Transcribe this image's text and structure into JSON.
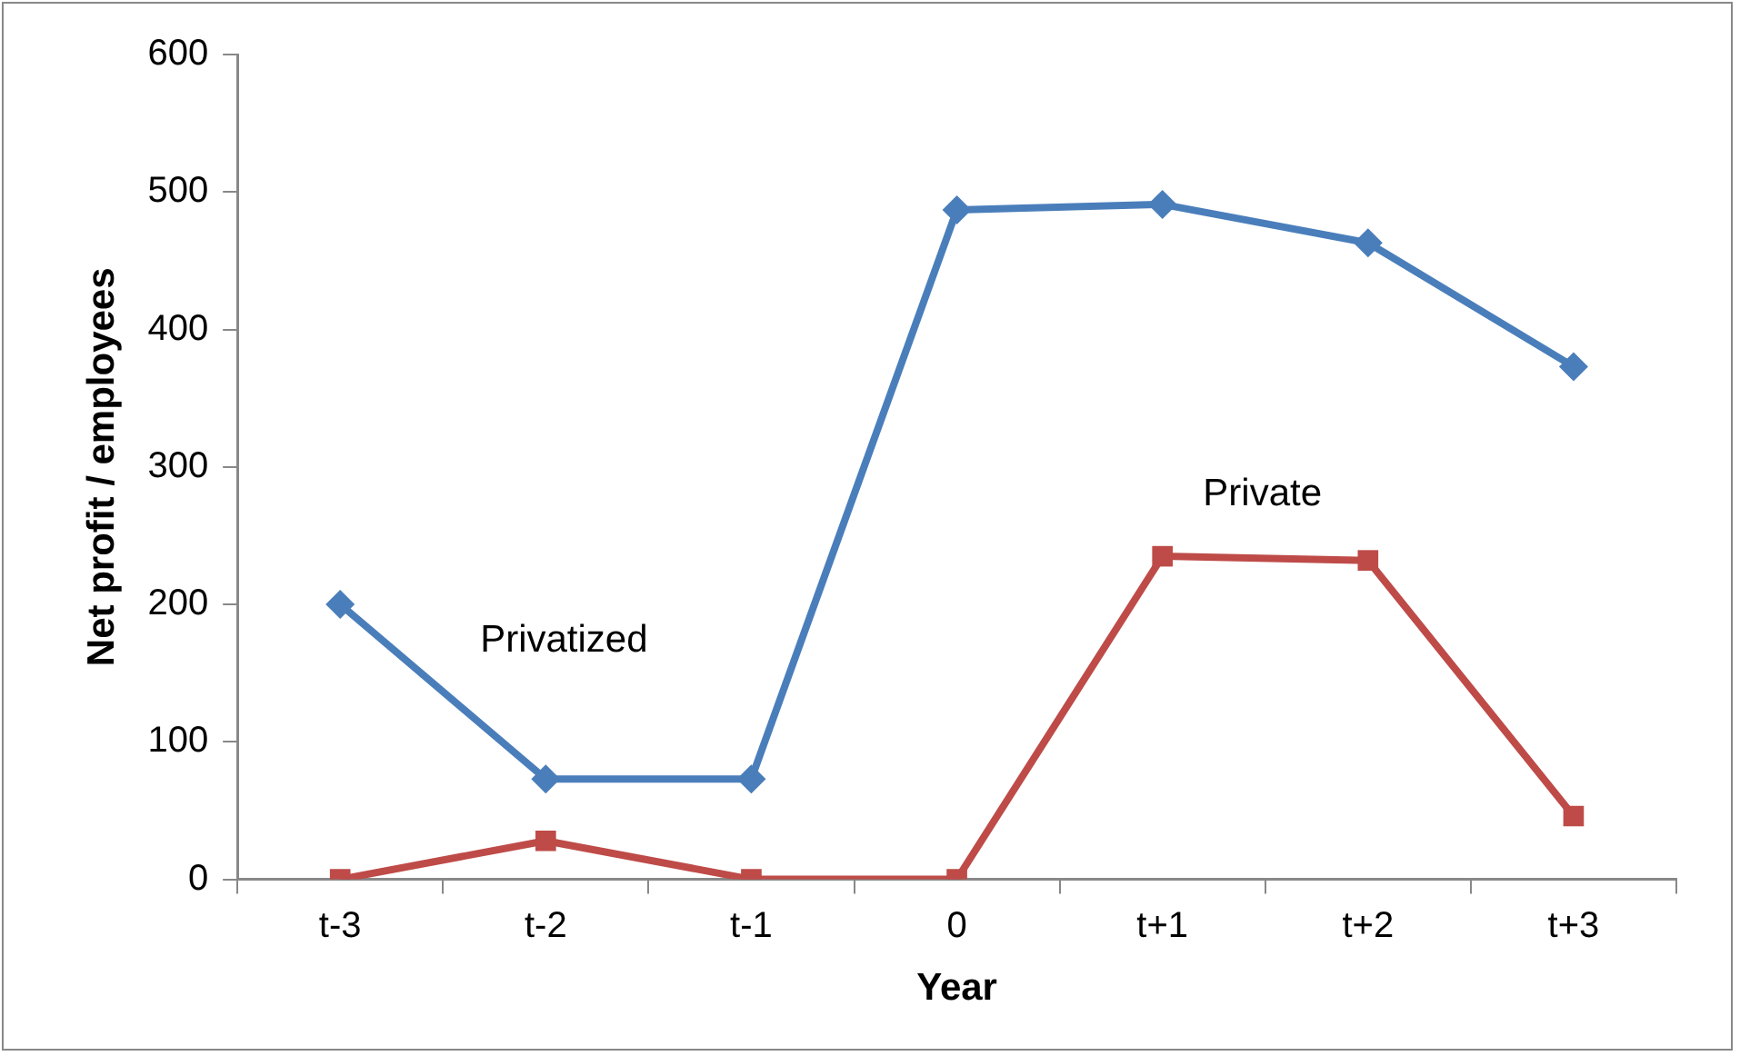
{
  "chart_data": {
    "type": "line",
    "xlabel": "Year",
    "ylabel": "Net profit / employees",
    "categories": [
      "t-3",
      "t-2",
      "t-1",
      "0",
      "t+1",
      "t+2",
      "t+3"
    ],
    "series": [
      {
        "name": "Privatized",
        "color": "#4a7ebb",
        "marker": "diamond",
        "values": [
          200,
          73,
          73,
          487,
          491,
          463,
          373
        ]
      },
      {
        "name": "Private",
        "color": "#be4b48",
        "marker": "square",
        "values": [
          0,
          28,
          0,
          0,
          235,
          232,
          46
        ]
      }
    ],
    "ylim": [
      0,
      600
    ],
    "yticks": [
      0,
      100,
      200,
      300,
      400,
      500,
      600
    ],
    "grid": false,
    "legend": false
  }
}
